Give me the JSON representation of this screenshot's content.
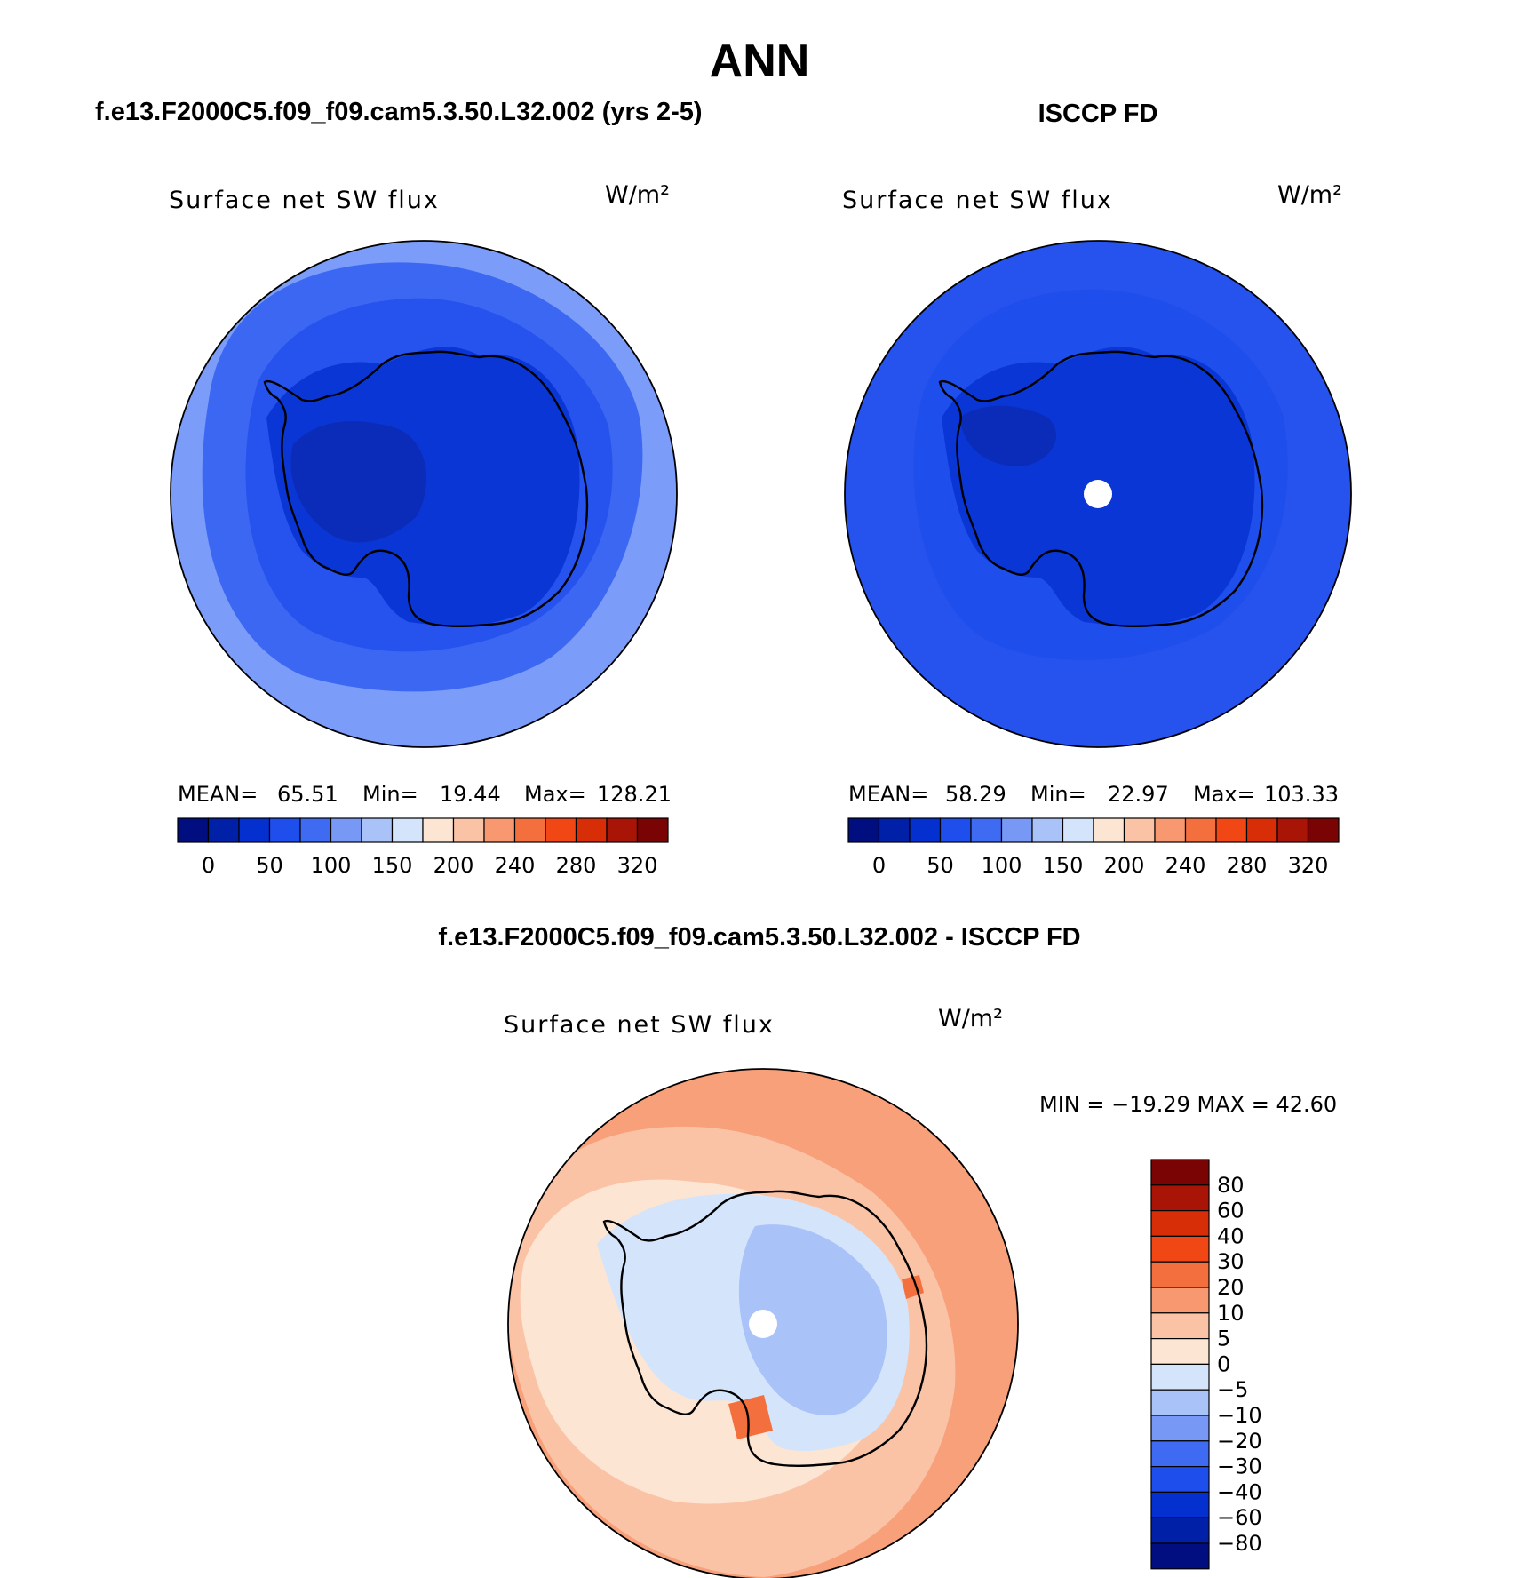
{
  "season_title": "ANN",
  "panel_left": {
    "case_title": "f.e13.F2000C5.f09_f09.cam5.3.50.L32.002 (yrs 2-5)",
    "variable": "Surface net SW flux",
    "units": "W/m²",
    "stats": {
      "mean_label": "MEAN=",
      "mean": "65.51",
      "min_label": "Min=",
      "min": "19.44",
      "max_label": "Max=",
      "max": "128.21"
    }
  },
  "panel_right": {
    "case_title": "ISCCP FD",
    "variable": "Surface net SW flux",
    "units": "W/m²",
    "stats": {
      "mean_label": "MEAN=",
      "mean": "58.29",
      "min_label": "Min=",
      "min": "22.97",
      "max_label": "Max=",
      "max": "103.33"
    }
  },
  "panel_diff": {
    "case_title": "f.e13.F2000C5.f09_f09.cam5.3.50.L32.002 - ISCCP FD",
    "variable": "Surface net SW flux",
    "units": "W/m²",
    "minmax_text": "MIN = −19.29 MAX =   42.60"
  },
  "colorbar_abs": {
    "colors": [
      "#000e80",
      "#0020a8",
      "#0530d0",
      "#1e4eec",
      "#3f6af2",
      "#7898f6",
      "#a9c2f8",
      "#d4e4fb",
      "#fde5d4",
      "#fbc3a6",
      "#f79870",
      "#f3703e",
      "#f04714",
      "#d82e08",
      "#a81506",
      "#7a0303"
    ],
    "tick_labels": [
      "0",
      "50",
      "100",
      "150",
      "200",
      "240",
      "280",
      "320"
    ]
  },
  "colorbar_diff": {
    "colors": [
      "#7a0303",
      "#a81506",
      "#d82e08",
      "#f04714",
      "#f3703e",
      "#f79870",
      "#fbc3a6",
      "#fde5d4",
      "#d4e4fb",
      "#a9c2f8",
      "#7898f6",
      "#3f6af2",
      "#1e4eec",
      "#0530d0",
      "#0020a8",
      "#000e80"
    ],
    "tick_labels": [
      "80",
      "60",
      "40",
      "30",
      "20",
      "10",
      "5",
      "0",
      "−5",
      "−10",
      "−20",
      "−30",
      "−40",
      "−60",
      "−80"
    ]
  },
  "map_colors": {
    "abs_outer": "#7b9cf8",
    "abs_mid": "#3c67f2",
    "abs_inner": "#2652ee",
    "abs_ice": "#0b36d6",
    "abs_ice_dark": "#0a2cb8",
    "diff_outer": "#f7a07a",
    "diff_mid": "#fbc3a6",
    "diff_near": "#fde5d4",
    "diff_ice": "#d4e4fb",
    "diff_interior": "#a9c2f8",
    "diff_hot": "#f3703e"
  }
}
